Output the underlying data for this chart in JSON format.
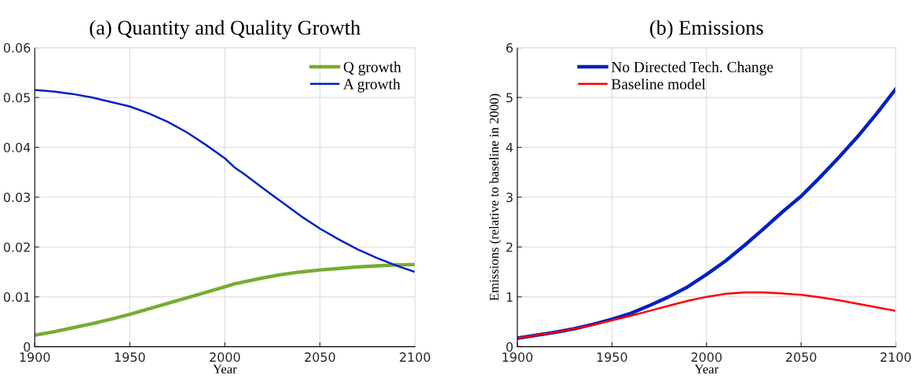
{
  "chart_data": [
    {
      "type": "line",
      "title": "(a) Quantity and Quality Growth",
      "xlabel": "Year",
      "x": [
        1900,
        1910,
        1920,
        1930,
        1940,
        1950,
        1960,
        1970,
        1980,
        1990,
        2000,
        2005,
        2010,
        2020,
        2030,
        2040,
        2050,
        2060,
        2070,
        2080,
        2090,
        2100
      ],
      "series": [
        {
          "name": "Q growth",
          "color": "#77ac30",
          "values": [
            0.0023,
            0.003,
            0.0038,
            0.0046,
            0.0055,
            0.0065,
            0.0076,
            0.0087,
            0.0098,
            0.0109,
            0.012,
            0.0126,
            0.013,
            0.0138,
            0.0145,
            0.015,
            0.0154,
            0.0157,
            0.016,
            0.0162,
            0.0164,
            0.0165
          ]
        },
        {
          "name": "A growth",
          "color": "#0022c0",
          "values": [
            0.0515,
            0.0512,
            0.0507,
            0.05,
            0.0491,
            0.0482,
            0.0468,
            0.0451,
            0.043,
            0.0405,
            0.0378,
            0.036,
            0.0347,
            0.0318,
            0.029,
            0.0262,
            0.0237,
            0.0215,
            0.0195,
            0.0178,
            0.0163,
            0.015
          ]
        }
      ],
      "xlim": [
        1900,
        2100
      ],
      "xticks": [
        1900,
        1950,
        2000,
        2050,
        2100
      ],
      "ylim": [
        0,
        0.06
      ],
      "yticks": [
        0,
        0.01,
        0.02,
        0.03,
        0.04,
        0.05,
        0.06
      ],
      "grid": true,
      "legend": "top right"
    },
    {
      "type": "line",
      "title": "(b) Emissions",
      "xlabel": "Year",
      "ylabel": "Emissions (relative to baseline in 2000)",
      "x": [
        1900,
        1910,
        1920,
        1930,
        1940,
        1950,
        1960,
        1970,
        1980,
        1990,
        2000,
        2010,
        2020,
        2030,
        2040,
        2050,
        2060,
        2070,
        2080,
        2090,
        2100
      ],
      "series": [
        {
          "name": "No Directed Tech. Change",
          "color": "#0022c0",
          "values": [
            0.17,
            0.23,
            0.29,
            0.36,
            0.45,
            0.55,
            0.67,
            0.83,
            1.0,
            1.2,
            1.45,
            1.72,
            2.03,
            2.36,
            2.7,
            3.02,
            3.4,
            3.8,
            4.22,
            4.68,
            5.17
          ]
        },
        {
          "name": "Baseline model",
          "color": "#ff0000",
          "values": [
            0.17,
            0.23,
            0.29,
            0.36,
            0.44,
            0.53,
            0.62,
            0.72,
            0.82,
            0.92,
            1.0,
            1.06,
            1.09,
            1.09,
            1.07,
            1.04,
            0.99,
            0.93,
            0.86,
            0.79,
            0.72
          ]
        }
      ],
      "xlim": [
        1900,
        2100
      ],
      "xticks": [
        1900,
        1950,
        2000,
        2050,
        2100
      ],
      "ylim": [
        0,
        6
      ],
      "yticks": [
        0,
        1,
        2,
        3,
        4,
        5,
        6
      ],
      "grid": true,
      "legend": "top"
    }
  ]
}
